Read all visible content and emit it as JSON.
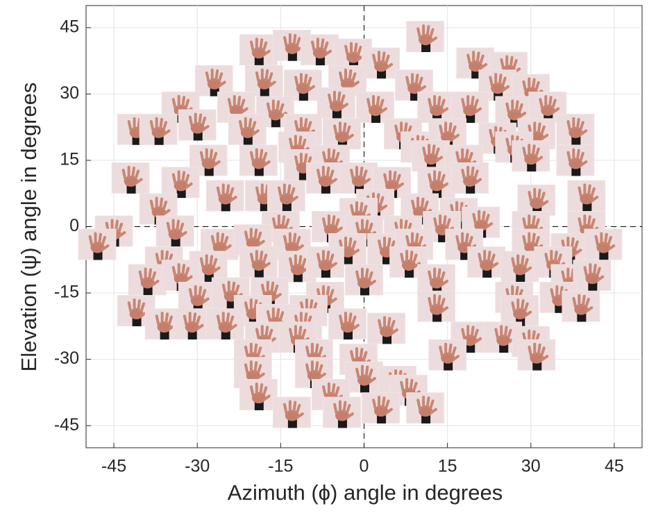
{
  "chart_data": {
    "type": "scatter",
    "x_label": "Azimuth (ϕ) angle in degrees",
    "y_label": "Elevation (ψ) angle in degrees",
    "xlim": [
      -50,
      50
    ],
    "ylim": [
      -50,
      50
    ],
    "xticks": [
      -45,
      -30,
      -15,
      0,
      15,
      30,
      45
    ],
    "yticks": [
      -45,
      -30,
      -15,
      0,
      15,
      30,
      45
    ],
    "grid": true,
    "zero_lines": true,
    "x": [
      11,
      -19,
      -13,
      -8,
      -2,
      3,
      20,
      26,
      -27,
      -18,
      -11,
      -3,
      9,
      24,
      30,
      -33,
      -23,
      -16,
      -5,
      2,
      13,
      19,
      27,
      33,
      -41,
      -37,
      -30,
      -21,
      -11,
      -4,
      7,
      15,
      24,
      31,
      38,
      -12,
      10,
      27,
      -28,
      -19,
      -11,
      -6,
      12,
      18,
      30,
      38,
      -42,
      -33,
      -7,
      -1,
      5,
      13,
      19,
      -25,
      -18,
      -14,
      2,
      31,
      40,
      -37,
      -1,
      10,
      17,
      -45,
      -34,
      -15,
      -6,
      0,
      7,
      14,
      21,
      30,
      40,
      -48,
      -26,
      -20,
      -13,
      -3,
      4,
      9,
      18,
      30,
      37,
      43,
      -36,
      -28,
      -19,
      -12,
      -7,
      8,
      22,
      28,
      34,
      -39,
      -33,
      0,
      13,
      37,
      41,
      -30,
      -24,
      -17,
      -7,
      27,
      35,
      -41,
      -20,
      -10,
      13,
      28,
      39,
      -36,
      -31,
      -25,
      -16,
      -11,
      -3,
      4,
      -18,
      -12,
      19,
      25,
      30,
      -20,
      -9,
      -1,
      15,
      31,
      -20,
      -9,
      0,
      6,
      -19,
      -6,
      8,
      -13,
      -4,
      3,
      11
    ],
    "values": [
      43,
      40,
      41,
      40,
      39,
      37,
      37,
      36,
      33,
      33,
      32,
      33,
      32,
      32,
      31,
      27,
      27,
      26,
      28,
      27,
      27,
      27,
      26,
      27,
      22,
      22,
      23,
      22,
      22,
      21,
      21,
      21,
      20,
      21,
      22,
      18,
      18,
      18,
      15,
      15,
      14,
      15,
      16,
      15,
      16,
      15,
      11,
      10,
      11,
      11,
      10,
      10,
      11,
      7,
      7,
      7,
      5,
      6,
      7,
      4,
      3,
      4,
      3,
      -1,
      -1,
      0,
      0,
      -1,
      -1,
      0,
      1,
      0,
      0,
      -4,
      -4,
      -3,
      -4,
      -5,
      -5,
      -4,
      -4,
      -4,
      -5,
      -4,
      -8,
      -9,
      -8,
      -9,
      -8,
      -8,
      -8,
      -9,
      -8,
      -12,
      -11,
      -12,
      -12,
      -12,
      -11,
      -16,
      -15,
      -15,
      -16,
      -16,
      -16,
      -19,
      -19,
      -19,
      -18,
      -19,
      -18,
      -22,
      -22,
      -22,
      -21,
      -22,
      -22,
      -23,
      -25,
      -25,
      -25,
      -25,
      -26,
      -29,
      -29,
      -30,
      -29,
      -29,
      -33,
      -33,
      -34,
      -35,
      -38,
      -38,
      -37,
      -42,
      -42,
      -41,
      -41
    ]
  }
}
